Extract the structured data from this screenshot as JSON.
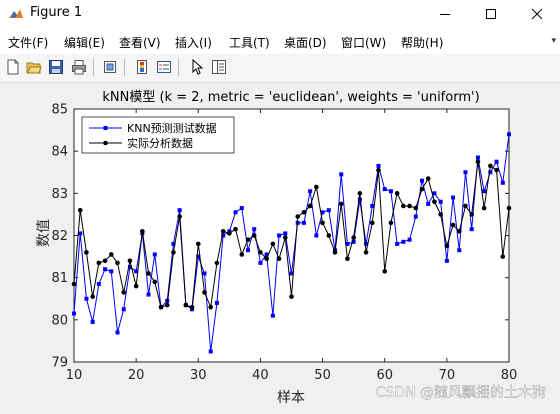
{
  "window": {
    "title": "Figure 1",
    "icon": "matlab-figure-icon",
    "controls": [
      "minimize-icon",
      "maximize-icon",
      "close-icon"
    ]
  },
  "menu": [
    {
      "label": "文件(F)"
    },
    {
      "label": "编辑(E)"
    },
    {
      "label": "查看(V)"
    },
    {
      "label": "插入(I)"
    },
    {
      "label": "工具(T)"
    },
    {
      "label": "桌面(D)"
    },
    {
      "label": "窗口(W)"
    },
    {
      "label": "帮助(H)"
    }
  ],
  "toolbar": [
    "new-figure-icon",
    "open-file-icon",
    "save-icon",
    "print-icon",
    "link-plot-icon",
    "colorbar-icon",
    "legend-icon",
    "pointer-icon",
    "property-inspector-icon"
  ],
  "watermark": "CSDN @随风飘摇的土木狗",
  "colors": {
    "knn": "#0000ff",
    "actual": "#000000",
    "background": "#f0f0f0"
  },
  "chart_data": {
    "type": "line",
    "title": "kNN模型 (k = 2, metric = 'euclidean', weights = 'uniform')",
    "xlabel": "样本",
    "ylabel": "数值",
    "xlim": [
      10,
      80
    ],
    "ylim": [
      79,
      85
    ],
    "xticks": [
      10,
      20,
      30,
      40,
      50,
      60,
      70,
      80
    ],
    "yticks": [
      79,
      80,
      81,
      82,
      83,
      84,
      85
    ],
    "grid": false,
    "legend_position": "top-left",
    "x_start": 10,
    "series": [
      {
        "name": "KNN预测测试数据",
        "color": "#0000ff",
        "marker": "square",
        "values": [
          80.15,
          82.05,
          80.5,
          79.95,
          80.85,
          81.2,
          81.15,
          79.7,
          80.25,
          81.25,
          81.15,
          82.05,
          80.6,
          81.55,
          80.3,
          80.45,
          81.8,
          82.6,
          80.35,
          80.25,
          81.5,
          81.1,
          79.25,
          80.4,
          82.0,
          82.1,
          82.55,
          82.65,
          81.65,
          82.15,
          81.35,
          81.55,
          80.1,
          82.0,
          82.05,
          81.1,
          82.3,
          82.3,
          83.05,
          82.0,
          82.55,
          82.6,
          81.65,
          83.45,
          81.8,
          81.85,
          82.85,
          81.8,
          82.7,
          83.65,
          83.1,
          83.05,
          81.8,
          81.85,
          81.9,
          82.45,
          83.3,
          82.75,
          83.0,
          82.8,
          81.4,
          82.9,
          81.65,
          83.5,
          82.15,
          83.85,
          83.05,
          83.5,
          83.75,
          83.25,
          84.4
        ]
      },
      {
        "name": "实际分析数据",
        "color": "#000000",
        "marker": "circle",
        "values": [
          80.85,
          82.6,
          81.6,
          80.55,
          81.35,
          81.4,
          81.55,
          81.35,
          80.65,
          81.4,
          80.8,
          82.1,
          81.1,
          80.9,
          80.3,
          80.35,
          81.6,
          82.45,
          80.35,
          80.3,
          81.8,
          80.65,
          80.3,
          81.35,
          82.1,
          82.05,
          82.15,
          81.55,
          81.9,
          82.0,
          81.6,
          81.45,
          81.8,
          81.45,
          81.95,
          80.55,
          82.45,
          82.55,
          82.7,
          83.15,
          82.3,
          82.0,
          81.6,
          82.75,
          81.45,
          81.95,
          83.0,
          81.6,
          82.3,
          83.55,
          81.15,
          82.3,
          83.0,
          82.7,
          82.7,
          82.65,
          83.1,
          83.35,
          82.8,
          82.5,
          81.75,
          82.25,
          82.1,
          82.7,
          82.5,
          83.75,
          82.65,
          83.65,
          83.55,
          81.5,
          82.65
        ]
      }
    ]
  }
}
